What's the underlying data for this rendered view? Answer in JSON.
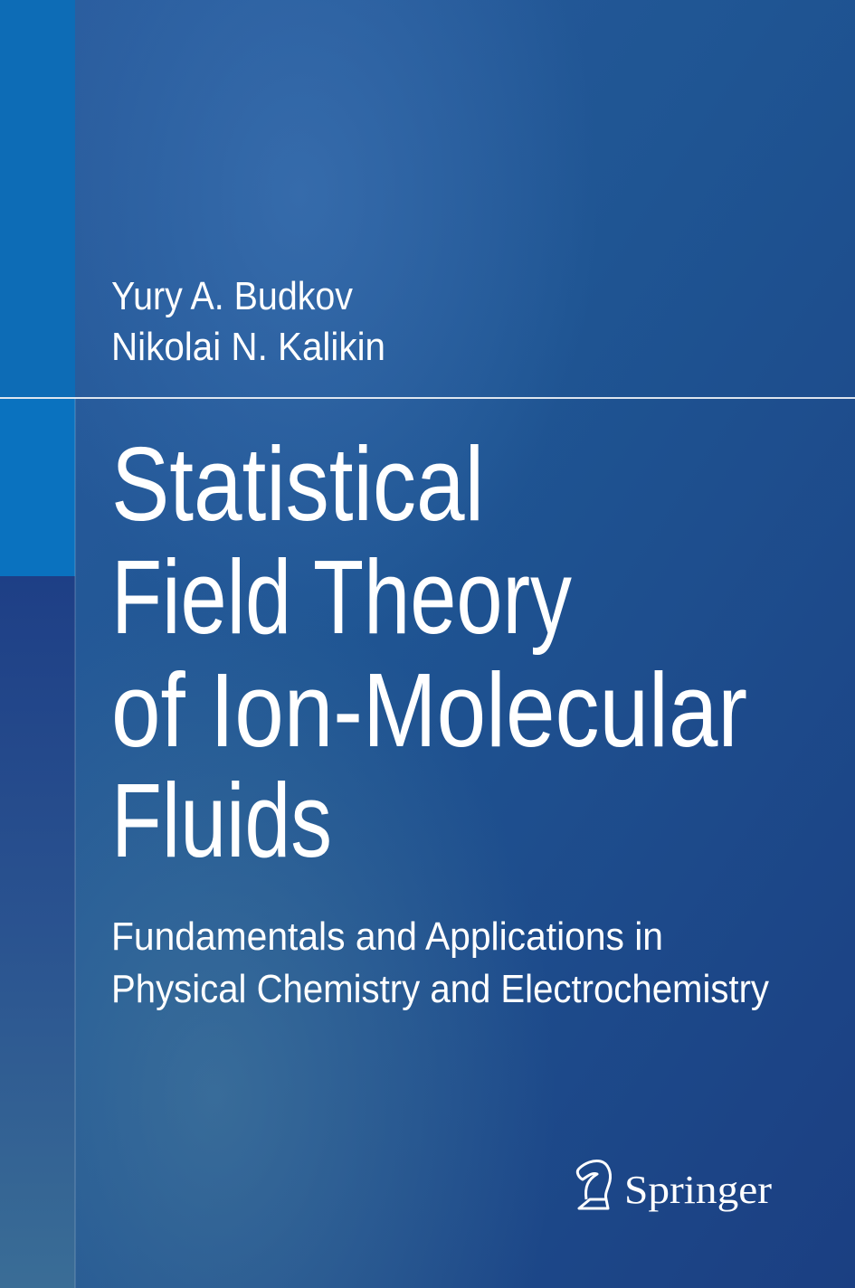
{
  "authors": [
    "Yury A. Budkov",
    "Nikolai N. Kalikin"
  ],
  "title": [
    "Statistical",
    "Field Theory",
    "of Ion-Molecular",
    "Fluids"
  ],
  "subtitle": [
    "Fundamentals and Applications in",
    "Physical Chemistry and Electrochemistry"
  ],
  "publisher": "Springer"
}
